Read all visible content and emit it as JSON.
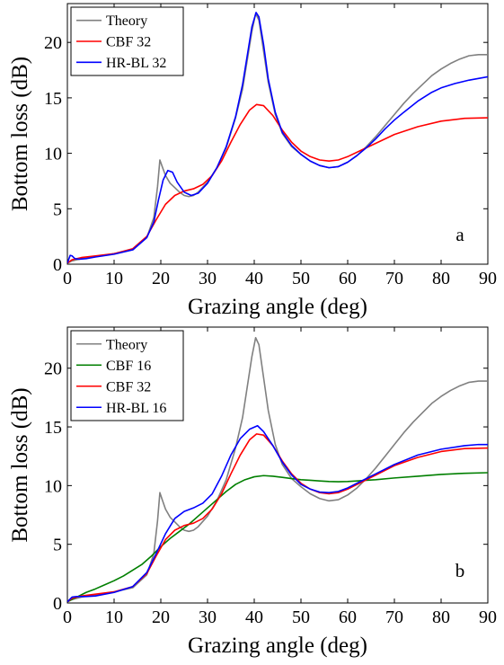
{
  "chart_data": [
    {
      "type": "line",
      "panel_label": "a",
      "xlabel": "Grazing angle (deg)",
      "ylabel": "Bottom loss (dB)",
      "xlim": [
        0,
        90
      ],
      "ylim": [
        0,
        23.5
      ],
      "xticks": [
        "0",
        "10",
        "20",
        "30",
        "40",
        "50",
        "60",
        "70",
        "80",
        "90"
      ],
      "yticks": [
        "0",
        "5",
        "10",
        "15",
        "20"
      ],
      "legend": "top-left",
      "series": [
        {
          "name": "Theory",
          "color": "#808080",
          "x": [
            0,
            1,
            3,
            6,
            10,
            14,
            17,
            18.5,
            19.3,
            19.8,
            20.3,
            21,
            22,
            23,
            24,
            25,
            26,
            27,
            28,
            30,
            32,
            34,
            36,
            37.5,
            38.5,
            39.5,
            40.3,
            41,
            42,
            43,
            44.5,
            46,
            48,
            50,
            52,
            54,
            56,
            58,
            60,
            62,
            64,
            66,
            68,
            70,
            72,
            74,
            76,
            78,
            80,
            82,
            84,
            86,
            88,
            90
          ],
          "y": [
            0.1,
            0.3,
            0.5,
            0.7,
            0.95,
            1.3,
            2.4,
            4.2,
            7.0,
            9.4,
            8.8,
            8.0,
            7.3,
            6.9,
            6.5,
            6.2,
            6.1,
            6.2,
            6.5,
            7.4,
            8.7,
            10.5,
            13.2,
            15.8,
            18.4,
            21.0,
            22.6,
            22.0,
            19.2,
            16.4,
            13.5,
            11.8,
            10.6,
            9.9,
            9.3,
            8.9,
            8.7,
            8.8,
            9.2,
            9.8,
            10.6,
            11.5,
            12.5,
            13.5,
            14.5,
            15.4,
            16.2,
            17.0,
            17.6,
            18.1,
            18.5,
            18.8,
            18.9,
            18.9
          ]
        },
        {
          "name": "CBF 32",
          "color": "#ff0000",
          "x": [
            0,
            1,
            3,
            6,
            10,
            14,
            17,
            19,
            21,
            23,
            25,
            27,
            29,
            31,
            33,
            35,
            37,
            39,
            40.5,
            42,
            44,
            46,
            48,
            50,
            52,
            54,
            56,
            58,
            60,
            63,
            66,
            70,
            75,
            80,
            85,
            90
          ],
          "y": [
            0.1,
            0.4,
            0.6,
            0.75,
            0.95,
            1.4,
            2.5,
            4.0,
            5.4,
            6.2,
            6.6,
            6.8,
            7.2,
            8.0,
            9.3,
            11.0,
            12.6,
            13.9,
            14.4,
            14.3,
            13.4,
            12.1,
            11.0,
            10.2,
            9.7,
            9.4,
            9.3,
            9.4,
            9.7,
            10.3,
            10.9,
            11.7,
            12.4,
            12.9,
            13.15,
            13.2
          ]
        },
        {
          "name": "HR-BL 32",
          "color": "#0000ff",
          "x": [
            0,
            0.6,
            1,
            1.6,
            2.5,
            4,
            6,
            10,
            14,
            17,
            18.5,
            19.5,
            20.5,
            21.5,
            22.5,
            23.5,
            25,
            26.5,
            28,
            30,
            32,
            34,
            36,
            37.5,
            38.5,
            39.5,
            40.4,
            41,
            42,
            43,
            44.5,
            46,
            48,
            50,
            52,
            54,
            56,
            58,
            60,
            62,
            64,
            66,
            68,
            70,
            72,
            75,
            78,
            80,
            83,
            86,
            88,
            90
          ],
          "y": [
            0.1,
            0.8,
            0.75,
            0.5,
            0.45,
            0.5,
            0.65,
            0.9,
            1.3,
            2.4,
            3.8,
            5.8,
            7.6,
            8.45,
            8.3,
            7.4,
            6.5,
            6.2,
            6.4,
            7.3,
            8.7,
            10.6,
            13.3,
            16.2,
            18.8,
            21.4,
            22.7,
            22.3,
            19.8,
            16.7,
            13.7,
            11.9,
            10.7,
            9.9,
            9.3,
            8.9,
            8.7,
            8.8,
            9.2,
            9.8,
            10.5,
            11.3,
            12.2,
            13.0,
            13.7,
            14.7,
            15.5,
            15.9,
            16.3,
            16.6,
            16.75,
            16.9
          ]
        }
      ]
    },
    {
      "type": "line",
      "panel_label": "b",
      "xlabel": "Grazing angle (deg)",
      "ylabel": "Bottom loss (dB)",
      "xlim": [
        0,
        90
      ],
      "ylim": [
        0,
        23.5
      ],
      "xticks": [
        "0",
        "10",
        "20",
        "30",
        "40",
        "50",
        "60",
        "70",
        "80",
        "90"
      ],
      "yticks": [
        "0",
        "5",
        "10",
        "15",
        "20"
      ],
      "legend": "top-left",
      "series": [
        {
          "name": "Theory",
          "color": "#808080",
          "x": [
            0,
            1,
            3,
            6,
            10,
            14,
            17,
            18.5,
            19.3,
            19.8,
            20.3,
            21,
            22,
            23,
            24,
            25,
            26,
            27,
            28,
            30,
            32,
            34,
            36,
            37.5,
            38.5,
            39.5,
            40.3,
            41,
            42,
            43,
            44.5,
            46,
            48,
            50,
            52,
            54,
            56,
            58,
            60,
            62,
            64,
            66,
            68,
            70,
            72,
            74,
            76,
            78,
            80,
            82,
            84,
            86,
            88,
            90
          ],
          "y": [
            0.1,
            0.3,
            0.5,
            0.7,
            0.95,
            1.3,
            2.4,
            4.2,
            7.0,
            9.4,
            8.8,
            8.0,
            7.3,
            6.9,
            6.5,
            6.2,
            6.1,
            6.2,
            6.5,
            7.4,
            8.7,
            10.5,
            13.2,
            15.8,
            18.4,
            21.0,
            22.6,
            22.0,
            19.2,
            16.4,
            13.5,
            11.8,
            10.6,
            9.9,
            9.3,
            8.9,
            8.7,
            8.8,
            9.2,
            9.8,
            10.6,
            11.5,
            12.5,
            13.5,
            14.5,
            15.4,
            16.2,
            17.0,
            17.6,
            18.1,
            18.5,
            18.8,
            18.9,
            18.9
          ]
        },
        {
          "name": "CBF 16",
          "color": "#007f00",
          "x": [
            0,
            2,
            4,
            6,
            8,
            10,
            12,
            14,
            16,
            18,
            20,
            22,
            24,
            26,
            28,
            30,
            32,
            34,
            36,
            38,
            40,
            42,
            44,
            46,
            48,
            50,
            52,
            54,
            56,
            58,
            60,
            62,
            64,
            66,
            70,
            75,
            80,
            85,
            90
          ],
          "y": [
            0.1,
            0.5,
            0.9,
            1.2,
            1.55,
            1.9,
            2.3,
            2.8,
            3.3,
            4.0,
            4.8,
            5.5,
            6.1,
            6.7,
            7.4,
            8.1,
            8.8,
            9.5,
            10.1,
            10.5,
            10.75,
            10.85,
            10.8,
            10.7,
            10.6,
            10.5,
            10.45,
            10.4,
            10.35,
            10.33,
            10.35,
            10.4,
            10.45,
            10.5,
            10.65,
            10.8,
            10.95,
            11.05,
            11.1
          ]
        },
        {
          "name": "CBF 32",
          "color": "#ff0000",
          "x": [
            0,
            1,
            3,
            6,
            10,
            14,
            17,
            19,
            21,
            23,
            25,
            27,
            29,
            31,
            33,
            35,
            37,
            39,
            40.5,
            42,
            44,
            46,
            48,
            50,
            52,
            54,
            56,
            58,
            60,
            63,
            66,
            70,
            75,
            80,
            85,
            90
          ],
          "y": [
            0.1,
            0.4,
            0.6,
            0.75,
            0.95,
            1.4,
            2.5,
            4.0,
            5.4,
            6.2,
            6.6,
            6.8,
            7.2,
            8.0,
            9.3,
            11.0,
            12.6,
            13.9,
            14.4,
            14.3,
            13.4,
            12.1,
            11.0,
            10.2,
            9.7,
            9.4,
            9.3,
            9.4,
            9.7,
            10.3,
            10.9,
            11.7,
            12.4,
            12.9,
            13.15,
            13.2
          ]
        },
        {
          "name": "HR-BL 16",
          "color": "#0000ff",
          "x": [
            0,
            1,
            2,
            4,
            6,
            10,
            14,
            17,
            19,
            21,
            23,
            25,
            27,
            29,
            31,
            33,
            35,
            37,
            39,
            40.7,
            42,
            44,
            46,
            48,
            50,
            52,
            54,
            56,
            58,
            60,
            63,
            66,
            70,
            75,
            80,
            85,
            88,
            90
          ],
          "y": [
            0.1,
            0.5,
            0.55,
            0.55,
            0.6,
            0.9,
            1.4,
            2.6,
            4.2,
            5.9,
            7.2,
            7.8,
            8.1,
            8.5,
            9.3,
            10.8,
            12.6,
            14.0,
            14.8,
            15.1,
            14.6,
            13.4,
            12.0,
            10.9,
            10.1,
            9.7,
            9.45,
            9.4,
            9.5,
            9.8,
            10.4,
            11.0,
            11.8,
            12.6,
            13.1,
            13.4,
            13.5,
            13.5
          ]
        }
      ]
    }
  ]
}
